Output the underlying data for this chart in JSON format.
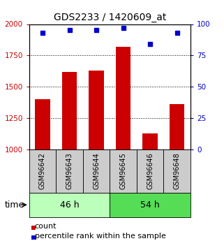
{
  "title": "GDS2233 / 1420609_at",
  "categories": [
    "GSM96642",
    "GSM96643",
    "GSM96644",
    "GSM96645",
    "GSM96646",
    "GSM96648"
  ],
  "bar_values": [
    1400,
    1620,
    1630,
    1820,
    1130,
    1360
  ],
  "percentile_values": [
    93,
    95,
    95,
    97,
    84,
    93
  ],
  "bar_color": "#cc0000",
  "dot_color": "#0000cc",
  "ylim_left": [
    1000,
    2000
  ],
  "ylim_right": [
    0,
    100
  ],
  "yticks_left": [
    1000,
    1250,
    1500,
    1750,
    2000
  ],
  "yticks_right": [
    0,
    25,
    50,
    75,
    100
  ],
  "grid_values": [
    1250,
    1500,
    1750
  ],
  "group1_label": "46 h",
  "group2_label": "54 h",
  "group1_count": 3,
  "group2_count": 3,
  "time_label": "time",
  "legend_count": "count",
  "legend_percentile": "percentile rank within the sample",
  "bg_color_light": "#bbffbb",
  "bg_color_dark": "#55dd55",
  "box_color": "#cccccc",
  "bar_width": 0.55,
  "title_fontsize": 10,
  "label_fontsize": 7,
  "group_fontsize": 9,
  "legend_fontsize": 8
}
